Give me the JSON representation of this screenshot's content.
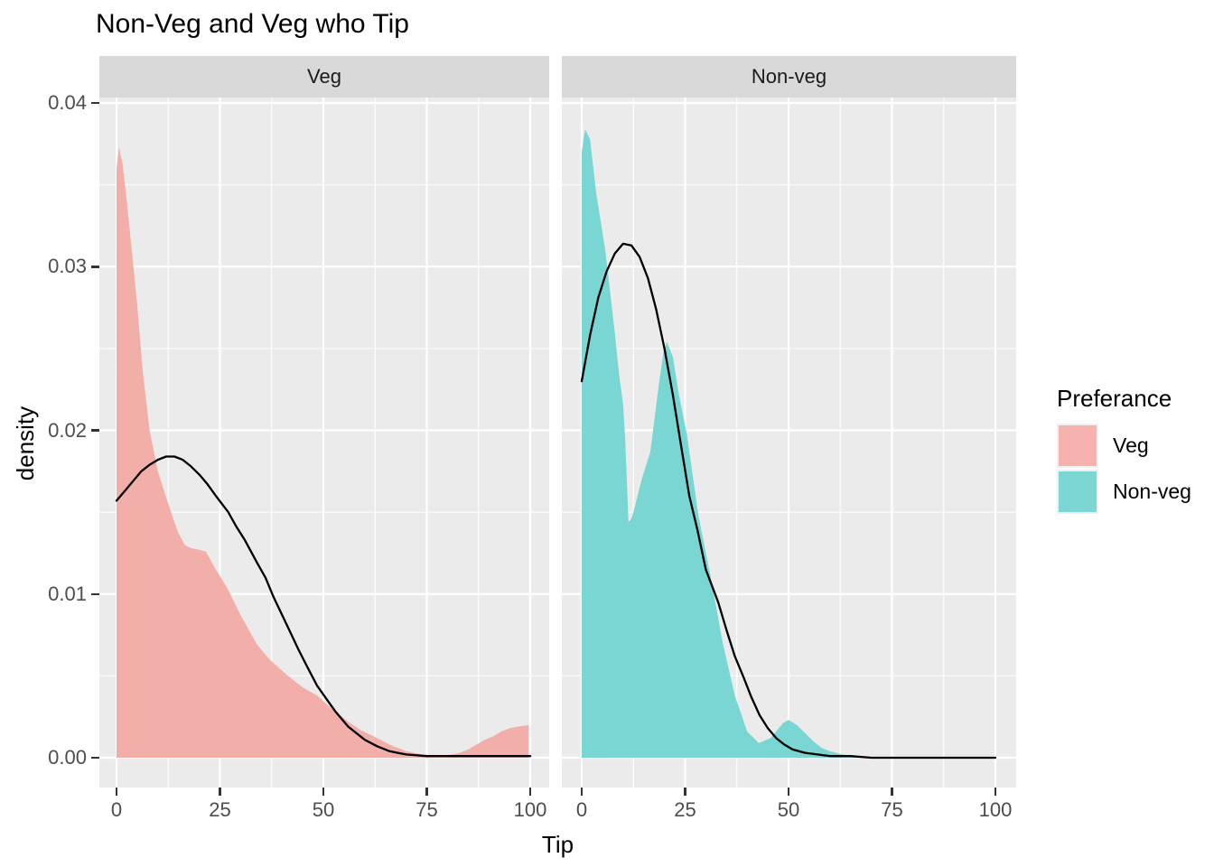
{
  "title": "Non-Veg and Veg who Tip",
  "axes": {
    "x_title": "Tip",
    "y_title": "density",
    "x_tick_labels": [
      "0",
      "25",
      "50",
      "75",
      "100"
    ],
    "x_tick_values": [
      0,
      25,
      50,
      75,
      100
    ],
    "x_minor_values": [
      12.5,
      37.5,
      62.5,
      87.5
    ],
    "y_tick_labels": [
      "0.00",
      "0.01",
      "0.02",
      "0.03",
      "0.04"
    ],
    "y_tick_values": [
      0,
      0.01,
      0.02,
      0.03,
      0.04
    ],
    "y_minor_values": [
      0.005,
      0.015,
      0.025,
      0.035
    ]
  },
  "facets": [
    "Veg",
    "Non-veg"
  ],
  "legend": {
    "title": "Preferance",
    "items": [
      {
        "label": "Veg",
        "color": "#F5B2AE"
      },
      {
        "label": "Non-veg",
        "color": "#7CD7D3"
      }
    ]
  },
  "colors": {
    "background": "#FFFFFF",
    "panel_bg": "#EBEBEB",
    "grid": "#FFFFFF",
    "strip_bg": "#D9D9D9",
    "strip_text": "#1A1A1A",
    "tick_label": "#4D4D4D",
    "tick_mark": "#333333",
    "curve": "#000000",
    "veg_fill": "#F2AFAA",
    "nonveg_fill": "#79D6D2"
  },
  "chart_data": [
    {
      "type": "area",
      "facet": "Veg",
      "xlabel": "Tip",
      "ylabel": "density",
      "xlim": [
        0,
        100
      ],
      "ylim": [
        0,
        0.04
      ],
      "x_ticks": [
        0,
        25,
        50,
        75,
        100
      ],
      "y_ticks": [
        0,
        0.01,
        0.02,
        0.03,
        0.04
      ],
      "grid": true,
      "legend_position": "right",
      "series": [
        {
          "name": "Veg tip density",
          "role": "density-area",
          "fill": "#F2AFAA",
          "points": [
            [
              0,
              0.036
            ],
            [
              0.6,
              0.0373
            ],
            [
              1.5,
              0.0362
            ],
            [
              2.5,
              0.034
            ],
            [
              3.7,
              0.031
            ],
            [
              5,
              0.0277
            ],
            [
              6.3,
              0.0237
            ],
            [
              8,
              0.02
            ],
            [
              10,
              0.0175
            ],
            [
              12,
              0.0159
            ],
            [
              14,
              0.0144
            ],
            [
              15,
              0.0137
            ],
            [
              16.5,
              0.013
            ],
            [
              18,
              0.0128
            ],
            [
              20,
              0.0127
            ],
            [
              21.6,
              0.0126
            ],
            [
              24,
              0.0115
            ],
            [
              26.7,
              0.0104
            ],
            [
              30,
              0.0087
            ],
            [
              34,
              0.0069
            ],
            [
              37,
              0.006
            ],
            [
              41,
              0.0051
            ],
            [
              45,
              0.0043
            ],
            [
              48.5,
              0.0038
            ],
            [
              52,
              0.003
            ],
            [
              56,
              0.0022
            ],
            [
              59,
              0.0017
            ],
            [
              63,
              0.0012
            ],
            [
              66,
              0.0008
            ],
            [
              70,
              0.0004
            ],
            [
              74,
              0.0002
            ],
            [
              78,
              0.0001
            ],
            [
              81,
              0.0002
            ],
            [
              83,
              0.0003
            ],
            [
              85,
              0.0005
            ],
            [
              87,
              0.0008
            ],
            [
              89,
              0.0011
            ],
            [
              91,
              0.0013
            ],
            [
              93,
              0.0016
            ],
            [
              95,
              0.0018
            ],
            [
              97,
              0.0019
            ],
            [
              99.6,
              0.002
            ]
          ]
        },
        {
          "name": "normal curve",
          "role": "overlay-line",
          "stroke": "#000000",
          "points": [
            [
              0,
              0.0157
            ],
            [
              2,
              0.0163
            ],
            [
              4,
              0.0169
            ],
            [
              6,
              0.0175
            ],
            [
              8,
              0.0179
            ],
            [
              10,
              0.0182
            ],
            [
              12,
              0.0184
            ],
            [
              14,
              0.0184
            ],
            [
              16,
              0.0182
            ],
            [
              18,
              0.0178
            ],
            [
              20,
              0.0173
            ],
            [
              22,
              0.0167
            ],
            [
              24,
              0.016
            ],
            [
              27,
              0.015
            ],
            [
              29,
              0.0141
            ],
            [
              31,
              0.0133
            ],
            [
              34,
              0.0119
            ],
            [
              36,
              0.011
            ],
            [
              38,
              0.0098
            ],
            [
              41,
              0.0082
            ],
            [
              44,
              0.0066
            ],
            [
              46,
              0.0056
            ],
            [
              48.5,
              0.0044
            ],
            [
              51,
              0.0035
            ],
            [
              53,
              0.0028
            ],
            [
              56,
              0.0019
            ],
            [
              58,
              0.0015
            ],
            [
              60,
              0.0011
            ],
            [
              63,
              0.0007
            ],
            [
              66,
              0.0004
            ],
            [
              68,
              0.0003
            ],
            [
              70,
              0.0002
            ],
            [
              75,
              0.0001
            ],
            [
              80,
              0.0001
            ],
            [
              85,
              0.0001
            ],
            [
              90,
              0.0001
            ],
            [
              95,
              0.0001
            ],
            [
              100,
              0.0001
            ]
          ]
        }
      ]
    },
    {
      "type": "area",
      "facet": "Non-veg",
      "xlabel": "Tip",
      "ylabel": "density",
      "xlim": [
        0,
        100
      ],
      "ylim": [
        0,
        0.04
      ],
      "x_ticks": [
        0,
        25,
        50,
        75,
        100
      ],
      "y_ticks": [
        0,
        0.01,
        0.02,
        0.03,
        0.04
      ],
      "grid": true,
      "legend_position": "right",
      "series": [
        {
          "name": "Non-veg tip density",
          "role": "density-area",
          "fill": "#79D6D2",
          "points": [
            [
              0,
              0.037
            ],
            [
              0.8,
              0.0384
            ],
            [
              2,
              0.0378
            ],
            [
              3.5,
              0.0345
            ],
            [
              5.7,
              0.031
            ],
            [
              8,
              0.026
            ],
            [
              9,
              0.0235
            ],
            [
              10,
              0.0216
            ],
            [
              10.5,
              0.0195
            ],
            [
              11.3,
              0.0144
            ],
            [
              12,
              0.0146
            ],
            [
              12.5,
              0.015
            ],
            [
              14.5,
              0.017
            ],
            [
              16.6,
              0.0187
            ],
            [
              18.8,
              0.0231
            ],
            [
              19.8,
              0.0248
            ],
            [
              20.6,
              0.0254
            ],
            [
              22,
              0.0245
            ],
            [
              23.5,
              0.0222
            ],
            [
              25.4,
              0.0198
            ],
            [
              28.2,
              0.0148
            ],
            [
              31.2,
              0.011
            ],
            [
              34.1,
              0.007
            ],
            [
              37,
              0.0038
            ],
            [
              40,
              0.0016
            ],
            [
              42.8,
              0.0009
            ],
            [
              45.7,
              0.0012
            ],
            [
              48.6,
              0.0021
            ],
            [
              50,
              0.0023
            ],
            [
              52,
              0.002
            ],
            [
              54,
              0.0015
            ],
            [
              56,
              0.001
            ],
            [
              58,
              0.0006
            ],
            [
              60,
              0.0004
            ],
            [
              63,
              0.0002
            ],
            [
              66,
              0.0001
            ],
            [
              68,
              0.0
            ]
          ]
        },
        {
          "name": "normal curve",
          "role": "overlay-line",
          "stroke": "#000000",
          "points": [
            [
              0,
              0.023
            ],
            [
              2,
              0.0258
            ],
            [
              4,
              0.0281
            ],
            [
              6,
              0.0297
            ],
            [
              8,
              0.0308
            ],
            [
              10,
              0.0314
            ],
            [
              12,
              0.0313
            ],
            [
              14,
              0.0306
            ],
            [
              16,
              0.0293
            ],
            [
              18,
              0.0274
            ],
            [
              20,
              0.025
            ],
            [
              22,
              0.0222
            ],
            [
              24,
              0.0191
            ],
            [
              26,
              0.016
            ],
            [
              28,
              0.0139
            ],
            [
              30,
              0.0115
            ],
            [
              33,
              0.0095
            ],
            [
              35,
              0.0078
            ],
            [
              37,
              0.0062
            ],
            [
              39,
              0.005
            ],
            [
              41,
              0.0037
            ],
            [
              43,
              0.0026
            ],
            [
              45,
              0.0018
            ],
            [
              47,
              0.0012
            ],
            [
              49,
              0.0008
            ],
            [
              51,
              0.0005
            ],
            [
              54,
              0.0003
            ],
            [
              57,
              0.0002
            ],
            [
              60,
              0.0001
            ],
            [
              65,
              0.0001
            ],
            [
              70,
              0.0
            ],
            [
              80,
              0.0
            ],
            [
              90,
              0.0
            ],
            [
              100,
              0.0
            ]
          ]
        }
      ]
    }
  ]
}
